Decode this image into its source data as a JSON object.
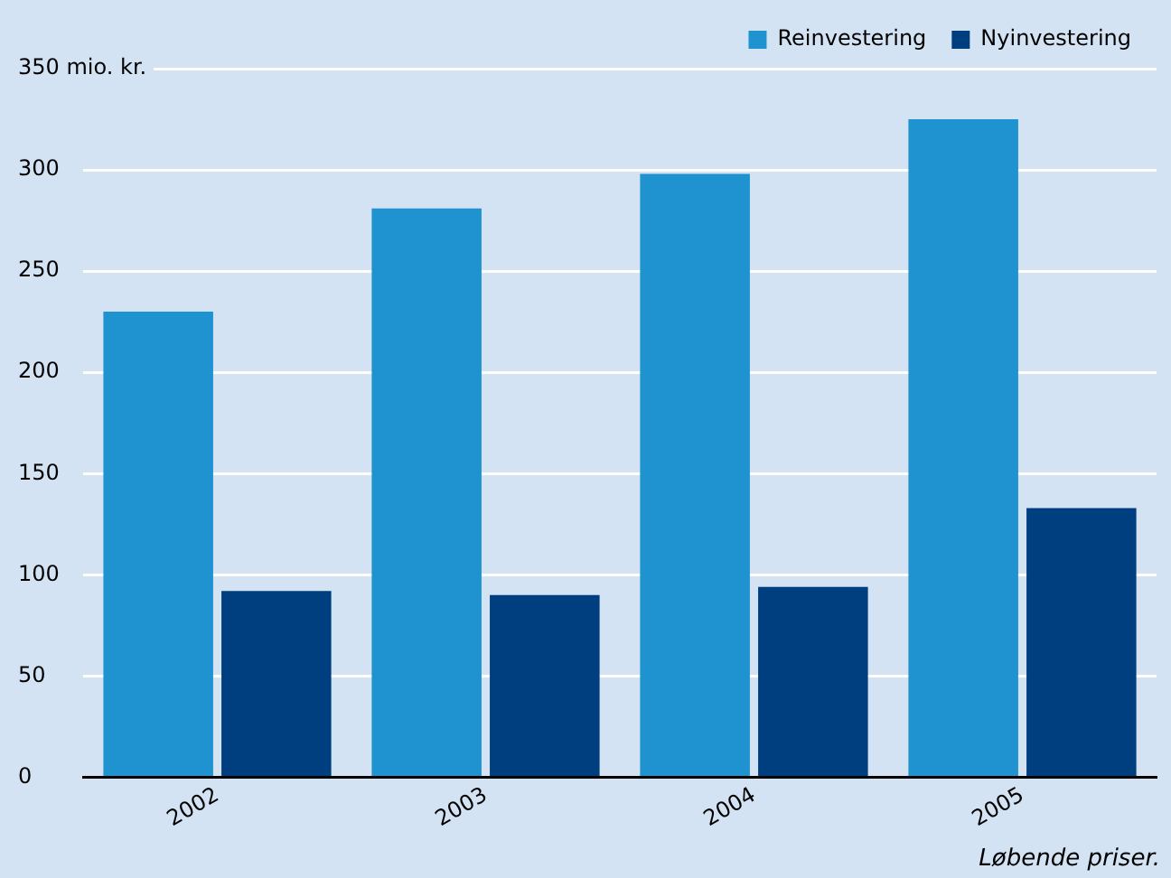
{
  "chart_data": {
    "type": "bar",
    "categories": [
      "2002",
      "2003",
      "2004",
      "2005"
    ],
    "series": [
      {
        "name": "Reinvestering",
        "color": "#1e93d0",
        "values": [
          230,
          281,
          298,
          325
        ]
      },
      {
        "name": "Nyinvestering",
        "color": "#003f7f",
        "values": [
          92,
          90,
          94,
          133
        ]
      }
    ],
    "ylim": [
      0,
      350
    ],
    "yticks": [
      0,
      50,
      100,
      150,
      200,
      250,
      300,
      {
        "value": 350,
        "label": "350 mio. kr."
      }
    ],
    "grid": "y",
    "legend": "top right",
    "annotations": [
      "Løbende priser."
    ]
  }
}
